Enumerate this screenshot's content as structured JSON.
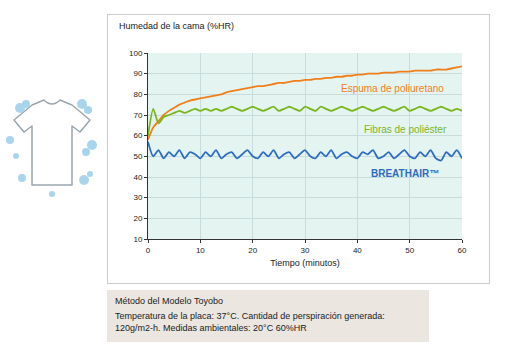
{
  "chart_data": {
    "type": "line",
    "y_label": "Humedad de la cama (%HR)",
    "x_label": "Tiempo (minutos)",
    "x": [
      0,
      1,
      2,
      3,
      4,
      5,
      6,
      7,
      8,
      9,
      10,
      11,
      12,
      13,
      14,
      15,
      16,
      17,
      18,
      19,
      20,
      21,
      22,
      23,
      24,
      25,
      26,
      27,
      28,
      29,
      30,
      31,
      32,
      33,
      34,
      35,
      36,
      37,
      38,
      39,
      40,
      41,
      42,
      43,
      44,
      45,
      46,
      47,
      48,
      49,
      50,
      51,
      52,
      53,
      54,
      55,
      56,
      57,
      58,
      59,
      60
    ],
    "series": [
      {
        "name": "Espuma de poliuretano",
        "color": "#f07f1b",
        "values": [
          58,
          64,
          67,
          70,
          72,
          73.5,
          75,
          76,
          77,
          77.5,
          78,
          78.5,
          79,
          79.5,
          80,
          81,
          81.5,
          82,
          82.5,
          83,
          83.5,
          84,
          84,
          84.5,
          85,
          85.5,
          85.5,
          86,
          86.5,
          86.5,
          87,
          87,
          87.5,
          87.5,
          88,
          88,
          88.5,
          88.5,
          89,
          89,
          89.5,
          89.5,
          90,
          90,
          90,
          90.5,
          90.5,
          90.5,
          91,
          91,
          91,
          91.5,
          91.5,
          91.5,
          91.5,
          92,
          92,
          92,
          92.5,
          93,
          93.5
        ]
      },
      {
        "name": "Fibras de poliéster",
        "color": "#7ab51d",
        "values": [
          60,
          73,
          66,
          69,
          70,
          71,
          72,
          71,
          72,
          73,
          72,
          73,
          72,
          73,
          72,
          73,
          74,
          73,
          72,
          73,
          74,
          73,
          72,
          73,
          74,
          72,
          73,
          74,
          73,
          72,
          74,
          73,
          72,
          74,
          73,
          72,
          73,
          74,
          73,
          72,
          73,
          74,
          73,
          72,
          73,
          74,
          73,
          72,
          73,
          74,
          72,
          73,
          74,
          73,
          72,
          73,
          74,
          73,
          72,
          73,
          72
        ]
      },
      {
        "name": "BREATHAIR™",
        "color": "#2d6cc0",
        "values": [
          57,
          50,
          53,
          49,
          52,
          50,
          53,
          49,
          52,
          51,
          49,
          52,
          50,
          53,
          49,
          51,
          52,
          49,
          51,
          53,
          50,
          49,
          52,
          50,
          53,
          49,
          51,
          52,
          49,
          51,
          53,
          50,
          49,
          52,
          50,
          53,
          49,
          51,
          52,
          50,
          49,
          52,
          51,
          53,
          49,
          50,
          52,
          49,
          51,
          53,
          50,
          49,
          52,
          50,
          53,
          49,
          48,
          52,
          50,
          53,
          49
        ]
      }
    ],
    "xlim": [
      0,
      60
    ],
    "xticks": [
      0,
      10,
      20,
      30,
      40,
      50,
      60
    ],
    "ylim": [
      10,
      100
    ],
    "yticks": [
      10,
      20,
      30,
      40,
      50,
      60,
      70,
      80,
      90,
      100
    ],
    "grid": true,
    "note": {
      "title": "Método del Modelo Toyobo",
      "lines": [
        "Temperatura de la placa: 37°C. Cantidad de perspiración generada:",
        "120g/m2-h. Medidas ambientales: 20°C 60%HR"
      ]
    }
  }
}
